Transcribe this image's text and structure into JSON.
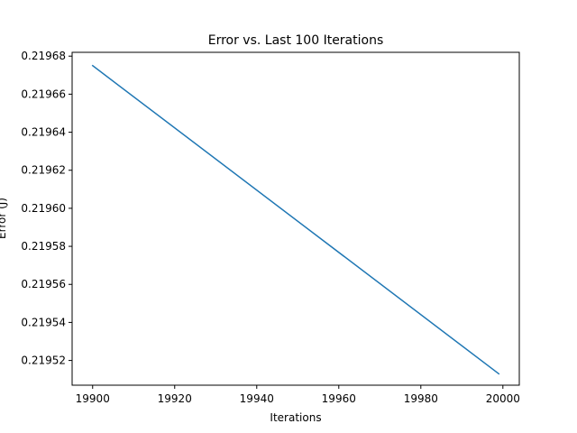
{
  "chart_data": {
    "type": "line",
    "title": "Error vs. Last 100 Iterations",
    "xlabel": "Iterations",
    "ylabel": "Error (J)",
    "xlim": [
      19895,
      20004
    ],
    "ylim": [
      0.219507,
      0.219682
    ],
    "xticks": [
      19900,
      19920,
      19940,
      19960,
      19980,
      20000
    ],
    "xtick_labels": [
      "19900",
      "19920",
      "19940",
      "19960",
      "19980",
      "20000"
    ],
    "yticks": [
      0.21952,
      0.21954,
      0.21956,
      0.21958,
      0.2196,
      0.21962,
      0.21964,
      0.21966,
      0.21968
    ],
    "ytick_labels": [
      "0.21952",
      "0.21954",
      "0.21956",
      "0.21958",
      "0.21960",
      "0.21962",
      "0.21964",
      "0.21966",
      "0.21968"
    ],
    "grid": false,
    "series": [
      {
        "color": "#1f77b4",
        "x": [
          19900,
          19999
        ],
        "y": [
          0.219675,
          0.219513
        ]
      }
    ]
  }
}
